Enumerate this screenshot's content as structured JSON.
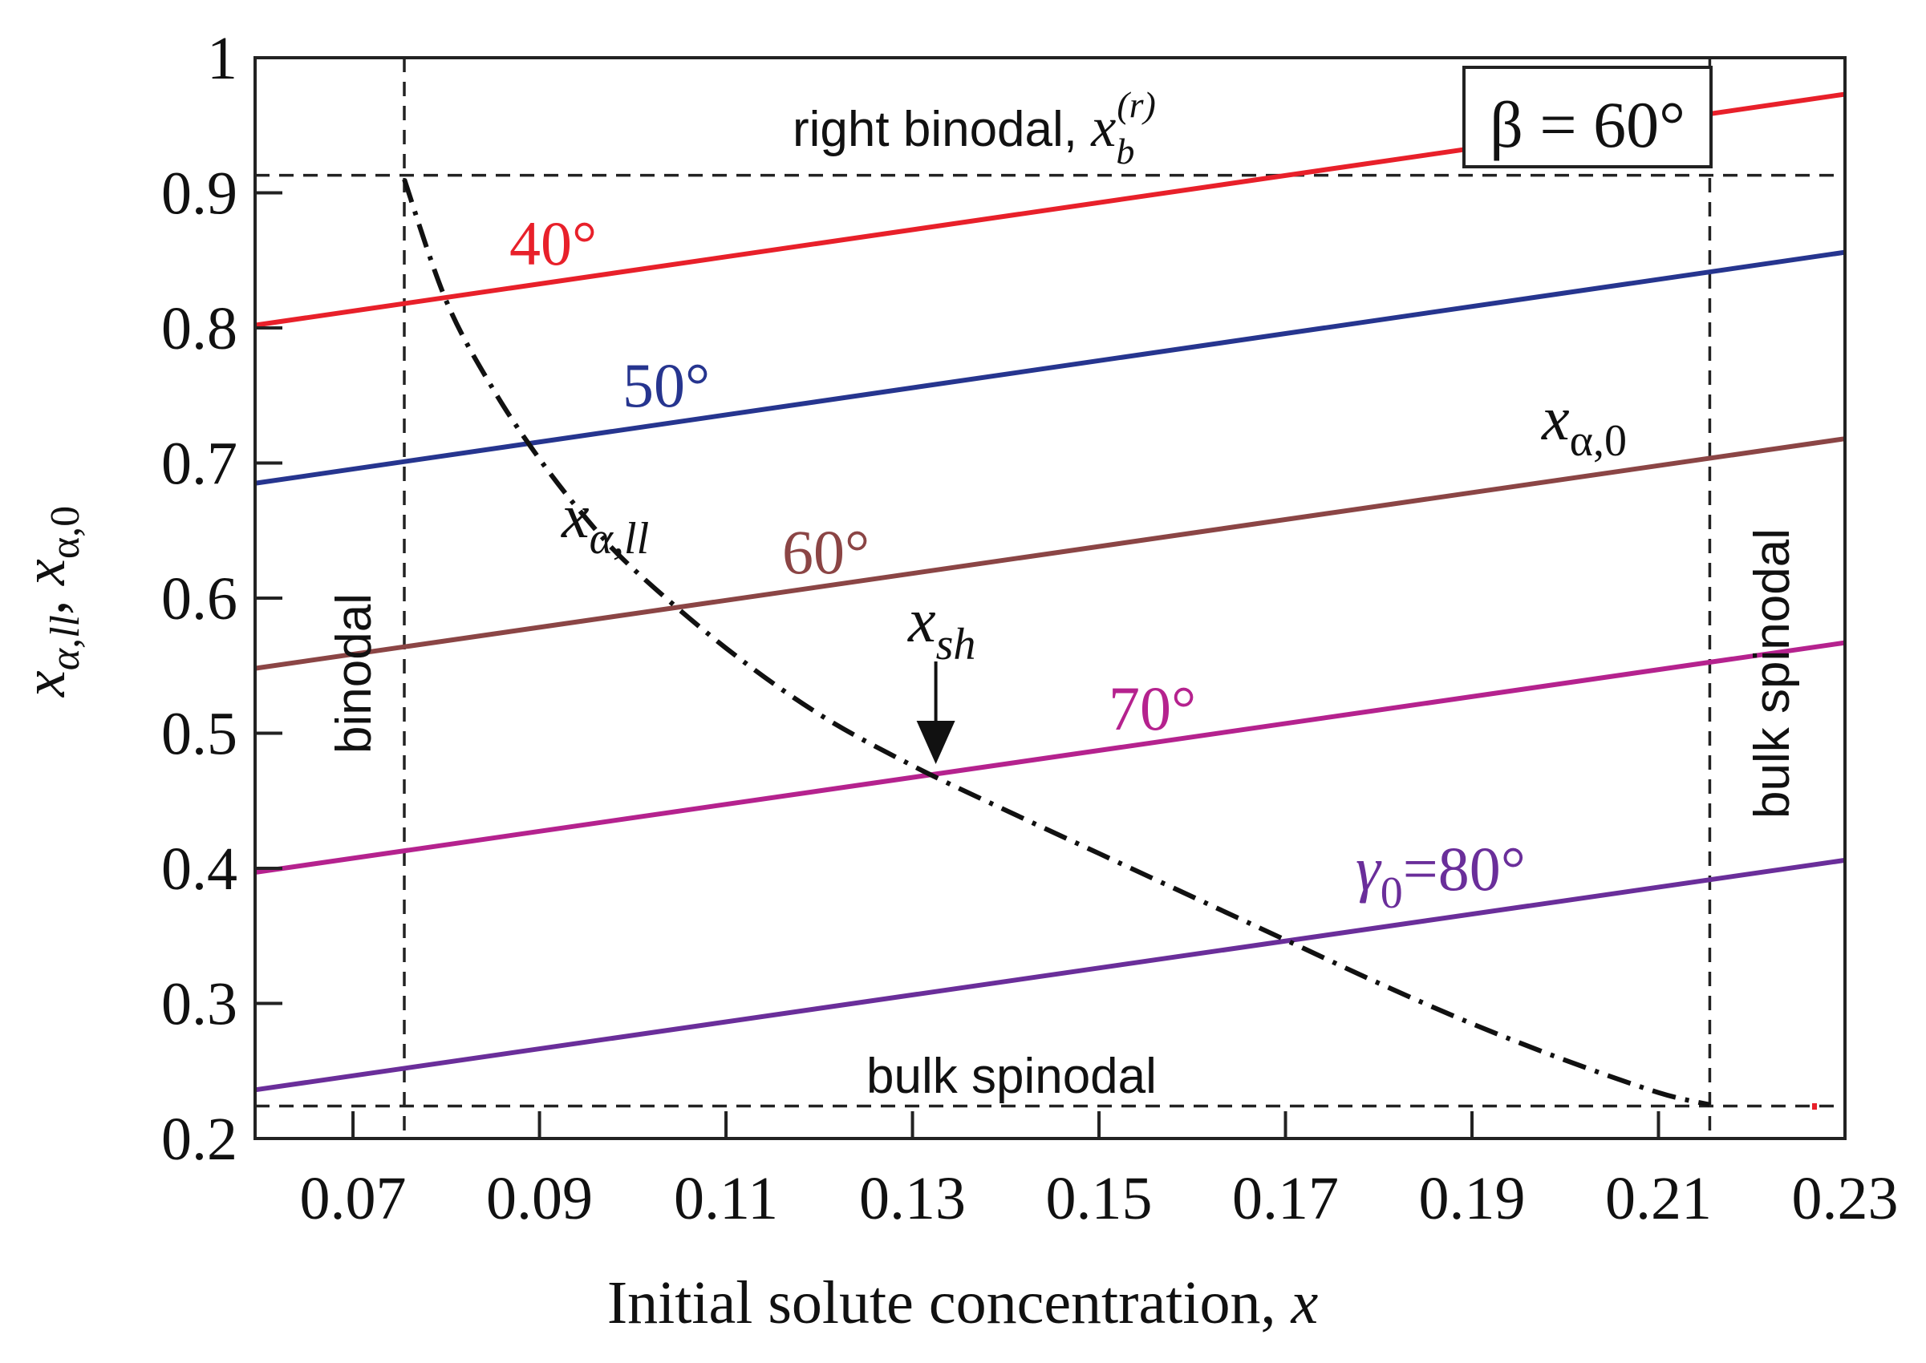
{
  "chart_data": {
    "type": "line",
    "xlabel": "Initial solute concentration, ",
    "xlabel_var": "x",
    "ylabel": {
      "part1_var": "x",
      "part1_sub": "α,ll",
      "sep": ", ",
      "part2_var": "x",
      "part2_sub": "α,0"
    },
    "xlim": [
      0.0595,
      0.23
    ],
    "ylim": [
      0.2,
      1.0
    ],
    "xticks": [
      0.07,
      0.09,
      0.11,
      0.13,
      0.15,
      0.17,
      0.19,
      0.21,
      0.23
    ],
    "xtick_labels": [
      "0.07",
      "0.09",
      "0.11",
      "0.13",
      "0.15",
      "0.17",
      "0.19",
      "0.21",
      "0.23"
    ],
    "yticks": [
      0.2,
      0.3,
      0.4,
      0.5,
      0.6,
      0.7,
      0.8,
      0.9,
      1.0
    ],
    "ytick_labels": [
      "0.2",
      "0.3",
      "0.4",
      "0.5",
      "0.6",
      "0.7",
      "0.8",
      "0.9",
      "1"
    ],
    "beta_box": "β = 60°",
    "series": [
      {
        "name": "40°",
        "color": "#e8202a",
        "x": [
          0.0595,
          0.23
        ],
        "y": [
          0.802,
          0.973
        ]
      },
      {
        "name": "50°",
        "color": "#26358f",
        "x": [
          0.0595,
          0.23
        ],
        "y": [
          0.685,
          0.856
        ]
      },
      {
        "name": "60°",
        "color": "#8b4545",
        "x": [
          0.0595,
          0.23
        ],
        "y": [
          0.548,
          0.718
        ]
      },
      {
        "name": "70°",
        "color": "#b5228e",
        "x": [
          0.0595,
          0.23
        ],
        "y": [
          0.397,
          0.567
        ]
      },
      {
        "name": "80°",
        "color": "#6a2e9a",
        "x": [
          0.0595,
          0.23
        ],
        "y": [
          0.236,
          0.406
        ]
      }
    ],
    "dashdot_curve": {
      "name": "x_α,ll",
      "color": "#111111",
      "x": [
        0.0755,
        0.08,
        0.085,
        0.09,
        0.095,
        0.1,
        0.11,
        0.12,
        0.13,
        0.14,
        0.15,
        0.16,
        0.17,
        0.18,
        0.19,
        0.2,
        0.21,
        0.2155
      ],
      "y": [
        0.91,
        0.82,
        0.755,
        0.703,
        0.659,
        0.622,
        0.563,
        0.514,
        0.476,
        0.443,
        0.411,
        0.379,
        0.347,
        0.315,
        0.285,
        0.258,
        0.234,
        0.225
      ]
    },
    "reference_lines": [
      {
        "name": "binodal",
        "orientation": "vertical",
        "value": 0.0755
      },
      {
        "name": "bulk spinodal",
        "orientation": "vertical",
        "value": 0.2155
      },
      {
        "name": "right binodal",
        "orientation": "horizontal",
        "value": 0.913
      },
      {
        "name": "bulk spinodal",
        "orientation": "horizontal",
        "value": 0.224
      }
    ],
    "annotations": {
      "right_binodal_text": "right binodal, ",
      "right_binodal_var": "x",
      "right_binodal_sub": "b",
      "right_binodal_sup": "(r)",
      "bulk_spinodal_horizontal": "bulk spinodal",
      "bulk_spinodal_vertical": "bulk spinodal",
      "binodal_vertical": "binodal",
      "x_alpha_0_var": "x",
      "x_alpha_0_sub": "α,0",
      "x_alpha_ll_var": "x",
      "x_alpha_ll_sub": "α,ll",
      "x_sh_var": "x",
      "x_sh_sub": "sh",
      "x_sh_at": [
        0.1325,
        0.476
      ],
      "gamma_sym": "γ",
      "gamma_sub": "0",
      "gamma_label": "=80°",
      "label_40": "40°",
      "label_50": "50°",
      "label_60": "60°",
      "label_70": "70°"
    }
  }
}
